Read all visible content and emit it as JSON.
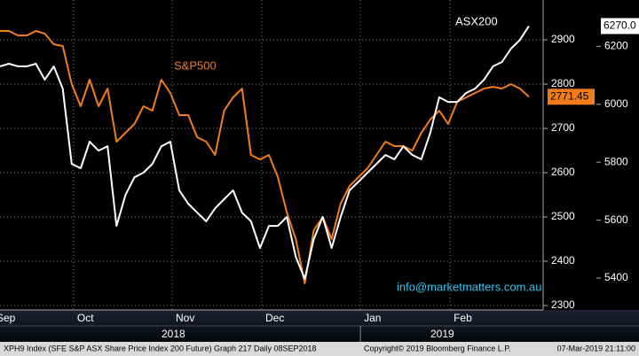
{
  "chart_data": {
    "type": "line",
    "categories": [
      "Sep",
      null,
      null,
      null,
      null,
      null,
      null,
      null,
      null,
      "Oct",
      null,
      null,
      null,
      null,
      null,
      null,
      null,
      null,
      null,
      null,
      "Nov",
      null,
      null,
      null,
      null,
      null,
      null,
      null,
      null,
      null,
      "Dec",
      null,
      null,
      null,
      null,
      null,
      null,
      null,
      null,
      null,
      null,
      "Jan",
      null,
      null,
      null,
      null,
      null,
      null,
      null,
      null,
      null,
      "Feb",
      null,
      null,
      null,
      null,
      null,
      null,
      null,
      null
    ],
    "year_labels": [
      {
        "label": "2018",
        "category": 20
      },
      {
        "label": "2019",
        "category": 50
      }
    ],
    "series": [
      {
        "name": "S&P500",
        "color": "#f07d1a",
        "axis": "y",
        "values": [
          2920,
          2920,
          2910,
          2910,
          2920,
          2914,
          2890,
          2886,
          2800,
          2750,
          2810,
          2750,
          2790,
          2670,
          2690,
          2710,
          2750,
          2740,
          2810,
          2780,
          2730,
          2730,
          2680,
          2670,
          2640,
          2740,
          2770,
          2790,
          2640,
          2630,
          2640,
          2590,
          2510,
          2450,
          2350,
          2470,
          2500,
          2450,
          2530,
          2570,
          2590,
          2610,
          2640,
          2670,
          2660,
          2660,
          2650,
          2690,
          2720,
          2740,
          2710,
          2760,
          2770,
          2780,
          2790,
          2794,
          2790,
          2800,
          2790,
          2771.45
        ],
        "value_labels": [
          null,
          null,
          null,
          null,
          null,
          null,
          null,
          null,
          null,
          null,
          null,
          null,
          null,
          null,
          null,
          null,
          null,
          null,
          null,
          null,
          null,
          null,
          null,
          null,
          null,
          null,
          null,
          null,
          null,
          null,
          null,
          null,
          null,
          null,
          null,
          null,
          null,
          null,
          null,
          null,
          null,
          null,
          null,
          null,
          null,
          null,
          null,
          null,
          null,
          null,
          null,
          null,
          null,
          null,
          null,
          null,
          null,
          null,
          null,
          "2771.45"
        ]
      },
      {
        "name": "ASX200",
        "color": "#ffffff",
        "axis": "y2",
        "values": [
          6131,
          6140,
          6131,
          6131,
          6140,
          6085,
          6131,
          6054,
          5794,
          5779,
          5871,
          5840,
          5855,
          5580,
          5687,
          5748,
          5764,
          5794,
          5855,
          5871,
          5703,
          5657,
          5626,
          5596,
          5641,
          5672,
          5703,
          5626,
          5596,
          5504,
          5580,
          5580,
          5611,
          5473,
          5397,
          5534,
          5611,
          5504,
          5611,
          5703,
          5733,
          5764,
          5794,
          5825,
          5810,
          5855,
          5825,
          5810,
          5901,
          6024,
          6008,
          6008,
          6039,
          6054,
          6085,
          6131,
          6146,
          6192,
          6222,
          6270
        ],
        "value_labels": [
          null,
          null,
          null,
          null,
          null,
          null,
          null,
          null,
          null,
          null,
          null,
          null,
          null,
          null,
          null,
          null,
          null,
          null,
          null,
          null,
          null,
          null,
          null,
          null,
          null,
          null,
          null,
          null,
          null,
          null,
          null,
          null,
          null,
          null,
          null,
          null,
          null,
          null,
          null,
          null,
          null,
          null,
          null,
          null,
          null,
          null,
          null,
          null,
          null,
          null,
          null,
          null,
          null,
          null,
          null,
          null,
          null,
          null,
          null,
          "6270.0"
        ]
      }
    ],
    "ylim": [
      2290,
      2990
    ],
    "yticks": [
      2300,
      2400,
      2500,
      2600,
      2700,
      2800,
      2900
    ],
    "y2lim": [
      5290,
      6360
    ],
    "y2ticks": [
      5400,
      5600,
      5800,
      6000,
      6200
    ],
    "grid": true,
    "annotation": "info@marketmatters.com.au",
    "footer": {
      "left": "XPH9 Index (SFE S&P ASX Share Price Index 200 Future) Graph 217  Daily 08SEP2018",
      "center": "Copyright© 2019 Bloomberg Finance L.P.",
      "right": "07-Mar-2019 21:11:00"
    }
  }
}
